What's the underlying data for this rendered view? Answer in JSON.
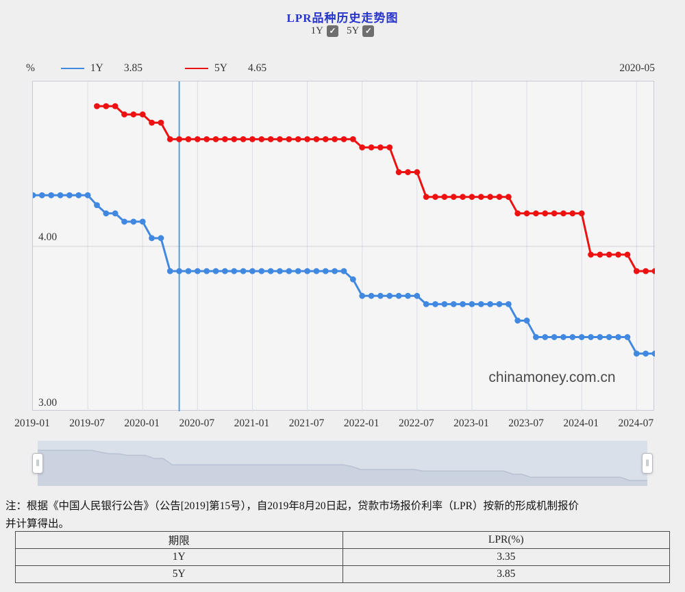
{
  "page": {
    "title": "LPR品种历史走势图"
  },
  "controls": {
    "series_toggles": [
      {
        "label": "1Y",
        "checked": true,
        "check_glyph": "✓"
      },
      {
        "label": "5Y",
        "checked": true,
        "check_glyph": "✓"
      }
    ]
  },
  "legend": {
    "unit": "%",
    "items": [
      {
        "name": "1Y",
        "value": "3.85",
        "color": "#4189e0"
      },
      {
        "name": "5Y",
        "value": "4.65",
        "color": "#ee1111"
      }
    ],
    "hover_date": "2020-05"
  },
  "watermark": "chinamoney.com.cn",
  "colors": {
    "title": "#2633cc",
    "series_1y": "#4189e0",
    "series_5y": "#ee1111",
    "hover_line": "#5f9bd8",
    "grid": "#dadde3",
    "mid_grid": "#cdd1d8",
    "nav_fill": "#ccd3e0",
    "nav_line": "#b8c1d1"
  },
  "chart_data": {
    "type": "line",
    "title": "LPR品种历史走势图",
    "ylabel": "%",
    "ylim": [
      3.0,
      5.0
    ],
    "yticks": [
      "4.00",
      "3.00"
    ],
    "grid": true,
    "legend_position": "top",
    "marker": "circle",
    "hover": {
      "date": "2020-05",
      "values": {
        "1Y": 3.85,
        "5Y": 4.65
      }
    },
    "xticks": [
      "2019-01",
      "2019-07",
      "2020-01",
      "2020-07",
      "2021-01",
      "2021-07",
      "2022-01",
      "2022-07",
      "2023-01",
      "2023-07",
      "2024-01",
      "2024-07"
    ],
    "categories": [
      "2019-01",
      "2019-02",
      "2019-03",
      "2019-04",
      "2019-05",
      "2019-06",
      "2019-07",
      "2019-08",
      "2019-09",
      "2019-10",
      "2019-11",
      "2019-12",
      "2020-01",
      "2020-02",
      "2020-03",
      "2020-04",
      "2020-05",
      "2020-06",
      "2020-07",
      "2020-08",
      "2020-09",
      "2020-10",
      "2020-11",
      "2020-12",
      "2021-01",
      "2021-02",
      "2021-03",
      "2021-04",
      "2021-05",
      "2021-06",
      "2021-07",
      "2021-08",
      "2021-09",
      "2021-10",
      "2021-11",
      "2021-12",
      "2022-01",
      "2022-02",
      "2022-03",
      "2022-04",
      "2022-05",
      "2022-06",
      "2022-07",
      "2022-08",
      "2022-09",
      "2022-10",
      "2022-11",
      "2022-12",
      "2023-01",
      "2023-02",
      "2023-03",
      "2023-04",
      "2023-05",
      "2023-06",
      "2023-07",
      "2023-08",
      "2023-09",
      "2023-10",
      "2023-11",
      "2023-12",
      "2024-01",
      "2024-02",
      "2024-03",
      "2024-04",
      "2024-05",
      "2024-06",
      "2024-07",
      "2024-08",
      "2024-09"
    ],
    "series": [
      {
        "name": "1Y",
        "color": "#4189e0",
        "values": [
          4.31,
          4.31,
          4.31,
          4.31,
          4.31,
          4.31,
          4.31,
          4.25,
          4.2,
          4.2,
          4.15,
          4.15,
          4.15,
          4.05,
          4.05,
          3.85,
          3.85,
          3.85,
          3.85,
          3.85,
          3.85,
          3.85,
          3.85,
          3.85,
          3.85,
          3.85,
          3.85,
          3.85,
          3.85,
          3.85,
          3.85,
          3.85,
          3.85,
          3.85,
          3.85,
          3.8,
          3.7,
          3.7,
          3.7,
          3.7,
          3.7,
          3.7,
          3.7,
          3.65,
          3.65,
          3.65,
          3.65,
          3.65,
          3.65,
          3.65,
          3.65,
          3.65,
          3.65,
          3.55,
          3.55,
          3.45,
          3.45,
          3.45,
          3.45,
          3.45,
          3.45,
          3.45,
          3.45,
          3.45,
          3.45,
          3.45,
          3.35,
          3.35,
          3.35
        ]
      },
      {
        "name": "5Y",
        "color": "#ee1111",
        "values": [
          null,
          null,
          null,
          null,
          null,
          null,
          null,
          4.85,
          4.85,
          4.85,
          4.8,
          4.8,
          4.8,
          4.75,
          4.75,
          4.65,
          4.65,
          4.65,
          4.65,
          4.65,
          4.65,
          4.65,
          4.65,
          4.65,
          4.65,
          4.65,
          4.65,
          4.65,
          4.65,
          4.65,
          4.65,
          4.65,
          4.65,
          4.65,
          4.65,
          4.65,
          4.6,
          4.6,
          4.6,
          4.6,
          4.45,
          4.45,
          4.45,
          4.3,
          4.3,
          4.3,
          4.3,
          4.3,
          4.3,
          4.3,
          4.3,
          4.3,
          4.3,
          4.2,
          4.2,
          4.2,
          4.2,
          4.2,
          4.2,
          4.2,
          4.2,
          3.95,
          3.95,
          3.95,
          3.95,
          3.95,
          3.85,
          3.85,
          3.85
        ]
      }
    ]
  },
  "note": {
    "line1": "注：根据《中国人民银行公告》（公告[2019]第15号），自2019年8月20日起，贷款市场报价利率（LPR）按新的形成机制报价",
    "line2": "并计算得出。"
  },
  "table": {
    "headers": [
      "期限",
      "LPR(%)"
    ],
    "rows": [
      [
        "1Y",
        "3.35"
      ],
      [
        "5Y",
        "3.85"
      ]
    ]
  },
  "navigator": {
    "handle_glyph": "‖"
  }
}
